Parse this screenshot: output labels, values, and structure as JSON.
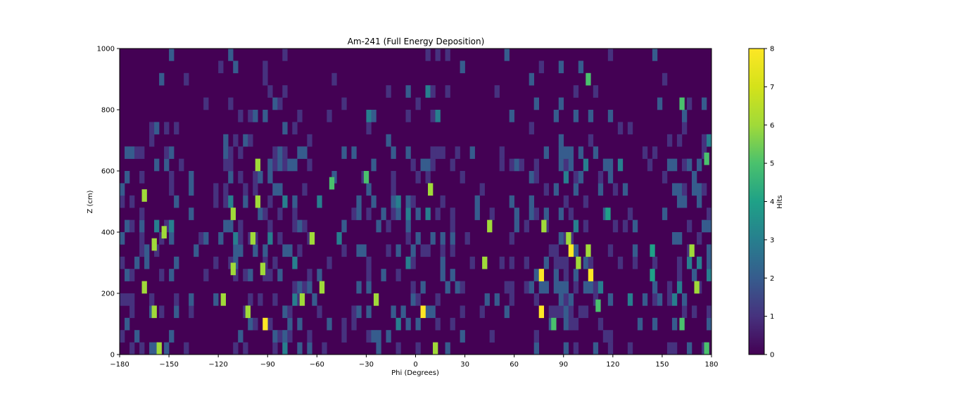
{
  "chart_data": {
    "type": "heatmap",
    "title": "Am-241 (Full Energy Deposition)",
    "xlabel": "Phi (Degrees)",
    "ylabel": "Z (cm)",
    "xlim": [
      -180,
      180
    ],
    "ylim": [
      0,
      1000
    ],
    "x_bin_width_deg": 3,
    "z_bin_width_cm": 40,
    "xticks": [
      -180,
      -150,
      -120,
      -90,
      -60,
      -30,
      0,
      30,
      60,
      90,
      120,
      150,
      180
    ],
    "yticks": [
      0,
      200,
      400,
      600,
      800,
      1000
    ],
    "colorbar": {
      "label": "Hits",
      "min": 0,
      "max": 8,
      "ticks": [
        0,
        1,
        2,
        3,
        4,
        5,
        6,
        7,
        8
      ],
      "colormap": "viridis"
    },
    "grid": false,
    "notes": "Per-bin hit counts are not printed on the chart; the listed cells are approximate readings of the notable (bright) bins. All other bins hold 0–2 hits.",
    "cells": [
      {
        "phi": -91.5,
        "z": 100,
        "hits": 8
      },
      {
        "phi": 4.5,
        "z": 140,
        "hits": 8
      },
      {
        "phi": 76.5,
        "z": 140,
        "hits": 8
      },
      {
        "phi": 76.5,
        "z": 260,
        "hits": 8
      },
      {
        "phi": 94.5,
        "z": 340,
        "hits": 8
      },
      {
        "phi": 106.5,
        "z": 260,
        "hits": 8
      },
      {
        "phi": -165,
        "z": 520,
        "hits": 6
      },
      {
        "phi": -153,
        "z": 400,
        "hits": 6
      },
      {
        "phi": -159,
        "z": 360,
        "hits": 6
      },
      {
        "phi": -159,
        "z": 140,
        "hits": 6
      },
      {
        "phi": -165,
        "z": 220,
        "hits": 6
      },
      {
        "phi": -156,
        "z": 20,
        "hits": 6
      },
      {
        "phi": -111,
        "z": 460,
        "hits": 6
      },
      {
        "phi": -111,
        "z": 280,
        "hits": 6
      },
      {
        "phi": -117,
        "z": 180,
        "hits": 6
      },
      {
        "phi": -96,
        "z": 620,
        "hits": 6
      },
      {
        "phi": -96,
        "z": 500,
        "hits": 6
      },
      {
        "phi": -99,
        "z": 380,
        "hits": 6
      },
      {
        "phi": -93,
        "z": 280,
        "hits": 6
      },
      {
        "phi": -102,
        "z": 140,
        "hits": 6
      },
      {
        "phi": -69,
        "z": 180,
        "hits": 6
      },
      {
        "phi": -63,
        "z": 380,
        "hits": 6
      },
      {
        "phi": -57,
        "z": 220,
        "hits": 6
      },
      {
        "phi": -30,
        "z": 580,
        "hits": 5
      },
      {
        "phi": -24,
        "z": 180,
        "hits": 6
      },
      {
        "phi": 9,
        "z": 540,
        "hits": 6
      },
      {
        "phi": 12,
        "z": 20,
        "hits": 6
      },
      {
        "phi": 42,
        "z": 300,
        "hits": 6
      },
      {
        "phi": 45,
        "z": 420,
        "hits": 6
      },
      {
        "phi": 78,
        "z": 420,
        "hits": 6
      },
      {
        "phi": 84,
        "z": 100,
        "hits": 5
      },
      {
        "phi": 93,
        "z": 380,
        "hits": 6
      },
      {
        "phi": 99,
        "z": 300,
        "hits": 6
      },
      {
        "phi": 105,
        "z": 340,
        "hits": 6
      },
      {
        "phi": 111,
        "z": 160,
        "hits": 5
      },
      {
        "phi": 162,
        "z": 820,
        "hits": 5
      },
      {
        "phi": 162,
        "z": 100,
        "hits": 5
      },
      {
        "phi": 168,
        "z": 340,
        "hits": 6
      },
      {
        "phi": 171,
        "z": 220,
        "hits": 6
      },
      {
        "phi": 177,
        "z": 20,
        "hits": 5
      },
      {
        "phi": 177,
        "z": 640,
        "hits": 5
      },
      {
        "phi": 105,
        "z": 900,
        "hits": 5
      },
      {
        "phi": -51,
        "z": 560,
        "hits": 5
      },
      {
        "phi": 144,
        "z": 340,
        "hits": 4
      },
      {
        "phi": 144,
        "z": 260,
        "hits": 4
      },
      {
        "phi": 117,
        "z": 460,
        "hits": 4
      }
    ]
  }
}
